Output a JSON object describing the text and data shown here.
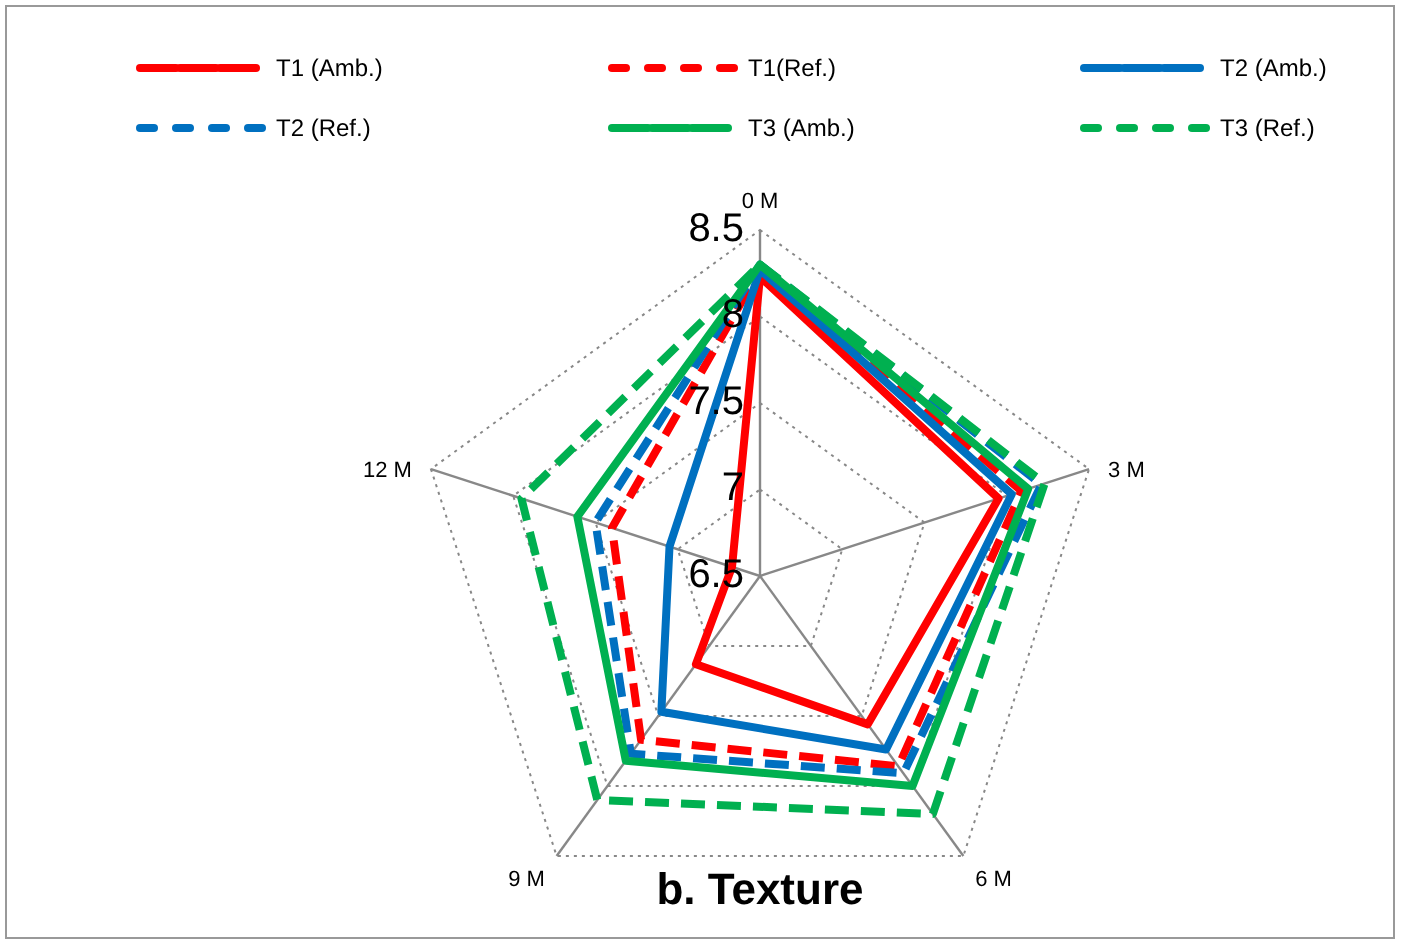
{
  "chart_data": {
    "type": "radar",
    "title": "b. Texture",
    "categories": [
      "0 M",
      "3 M",
      "6 M",
      "9 M",
      "12 M"
    ],
    "ylim": [
      6.5,
      8.5
    ],
    "yticks": [
      6.5,
      7,
      7.5,
      8,
      8.5
    ],
    "legend": "top",
    "series": [
      {
        "name": "T1 (Amb.)",
        "color": "#ff0000",
        "line_style": "solid",
        "values": [
          8.23,
          7.95,
          7.56,
          7.13,
          6.67
        ]
      },
      {
        "name": "T1(Ref.)",
        "color": "#ff0000",
        "line_style": "dashed",
        "values": [
          8.27,
          8.09,
          7.86,
          7.67,
          7.4
        ]
      },
      {
        "name": "T2 (Amb.)",
        "color": "#0070c0",
        "line_style": "solid",
        "values": [
          8.27,
          8.03,
          7.74,
          7.47,
          7.05
        ]
      },
      {
        "name": "T2 (Ref.)",
        "color": "#0070c0",
        "line_style": "dashed",
        "values": [
          8.3,
          8.21,
          7.91,
          7.77,
          7.5
        ]
      },
      {
        "name": "T3 (Amb.)",
        "color": "#00b050",
        "line_style": "solid",
        "values": [
          8.3,
          8.13,
          8.0,
          7.82,
          7.61
        ]
      },
      {
        "name": "T3 (Ref.)",
        "color": "#00b050",
        "line_style": "dashed",
        "values": [
          8.3,
          8.23,
          8.2,
          8.1,
          7.95
        ]
      }
    ]
  }
}
